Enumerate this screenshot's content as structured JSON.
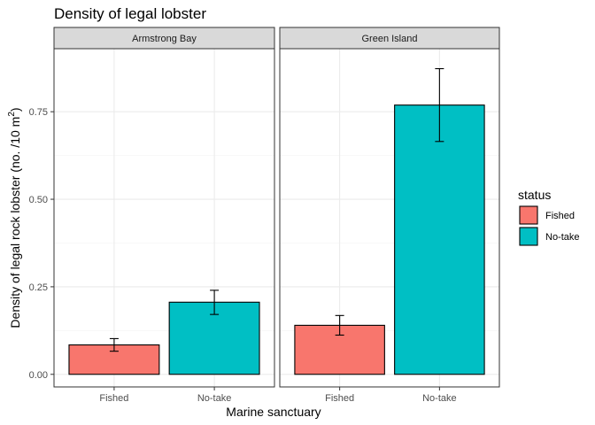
{
  "chart_data": {
    "type": "bar",
    "title": "Density of legal lobster",
    "xlabel": "Marine sanctuary",
    "ylabel_main": "Density of legal rock lobster (no. /10 m",
    "ylabel_sup": "2",
    "ylabel_close": ")",
    "ylim": [
      -0.036,
      0.93
    ],
    "yticks": [
      0.0,
      0.25,
      0.5,
      0.75
    ],
    "ytick_labels": [
      "0.00",
      "0.25",
      "0.50",
      "0.75"
    ],
    "grid": true,
    "legend_position": "right",
    "legend": {
      "title": "status",
      "entries": [
        {
          "label": "Fished",
          "color": "#F8766D"
        },
        {
          "label": "No-take",
          "color": "#00BFC4"
        }
      ]
    },
    "facets": [
      {
        "label": "Armstrong Bay",
        "categories": [
          "Fished",
          "No-take"
        ],
        "values": [
          0.084,
          0.206
        ],
        "err_low": [
          0.066,
          0.171
        ],
        "err_high": [
          0.102,
          0.24
        ]
      },
      {
        "label": "Green Island",
        "categories": [
          "Fished",
          "No-take"
        ],
        "values": [
          0.14,
          0.769
        ],
        "err_low": [
          0.112,
          0.665
        ],
        "err_high": [
          0.168,
          0.873
        ]
      }
    ]
  }
}
